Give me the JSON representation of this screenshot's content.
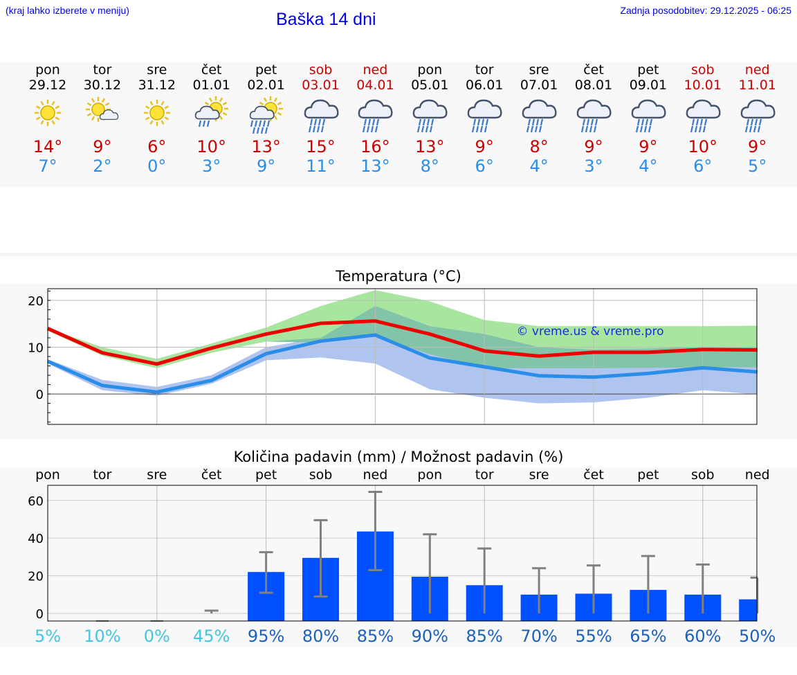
{
  "header": {
    "hint": "(kraj lahko izberete v meniju)",
    "title": "Baška 14 dni",
    "updated": "Zadnja posodobitev: 29.12.2025 - 06:25"
  },
  "days": [
    {
      "name": "pon",
      "date": "29.12",
      "weekend": false,
      "icon": "sun-icon",
      "max": "14°",
      "min": "7°"
    },
    {
      "name": "tor",
      "date": "30.12",
      "weekend": false,
      "icon": "sun-cloud-icon",
      "max": "9°",
      "min": "2°"
    },
    {
      "name": "sre",
      "date": "31.12",
      "weekend": false,
      "icon": "sun-icon",
      "max": "6°",
      "min": "0°"
    },
    {
      "name": "čet",
      "date": "01.01",
      "weekend": false,
      "icon": "sun-cloud-rain-icon",
      "max": "10°",
      "min": "3°"
    },
    {
      "name": "pet",
      "date": "02.01",
      "weekend": false,
      "icon": "sun-cloud-heavy-rain-icon",
      "max": "13°",
      "min": "9°"
    },
    {
      "name": "sob",
      "date": "03.01",
      "weekend": true,
      "icon": "rain-cloud-icon",
      "max": "15°",
      "min": "11°"
    },
    {
      "name": "ned",
      "date": "04.01",
      "weekend": true,
      "icon": "rain-cloud-icon",
      "max": "16°",
      "min": "13°"
    },
    {
      "name": "pon",
      "date": "05.01",
      "weekend": false,
      "icon": "rain-cloud-icon",
      "max": "13°",
      "min": "8°"
    },
    {
      "name": "tor",
      "date": "06.01",
      "weekend": false,
      "icon": "rain-cloud-icon",
      "max": "9°",
      "min": "6°"
    },
    {
      "name": "sre",
      "date": "07.01",
      "weekend": false,
      "icon": "rain-cloud-icon",
      "max": "8°",
      "min": "4°"
    },
    {
      "name": "čet",
      "date": "08.01",
      "weekend": false,
      "icon": "rain-cloud-icon",
      "max": "9°",
      "min": "3°"
    },
    {
      "name": "pet",
      "date": "09.01",
      "weekend": false,
      "icon": "rain-cloud-icon",
      "max": "9°",
      "min": "4°"
    },
    {
      "name": "sob",
      "date": "10.01",
      "weekend": true,
      "icon": "rain-cloud-icon",
      "max": "10°",
      "min": "6°"
    },
    {
      "name": "ned",
      "date": "11.01",
      "weekend": true,
      "icon": "rain-cloud-icon",
      "max": "9°",
      "min": "5°"
    }
  ],
  "colors": {
    "weekend": "#cc0000",
    "weekday": "#000000",
    "tmax": "#ee0000",
    "tmin": "#2a8ee8",
    "bandMax": "#a8e6a0",
    "bandMin": "#b0c4f0",
    "bandOverlap": "#82c4a8",
    "bar": "#0050ff",
    "err": "#808080",
    "probLow": "#40c8e0",
    "probHigh": "#1a60c0"
  },
  "chart_data": [
    {
      "type": "line",
      "title": "Temperatura (°C)",
      "watermark": "© vreme.us & vreme.pro",
      "yticks": [
        0,
        10,
        20
      ],
      "ylim": [
        -6.5,
        22.5
      ],
      "x": [
        0,
        1,
        2,
        3,
        4,
        5,
        6,
        7,
        8,
        9,
        10,
        11,
        12,
        13
      ],
      "series": [
        {
          "name": "max",
          "values": [
            14,
            8.8,
            6.4,
            9.8,
            12.8,
            15.1,
            15.6,
            12.8,
            9.2,
            8.1,
            8.9,
            8.9,
            9.5,
            9.4
          ]
        },
        {
          "name": "min",
          "values": [
            7,
            1.8,
            0.4,
            2.9,
            8.6,
            11.3,
            12.6,
            7.7,
            5.8,
            3.9,
            3.6,
            4.4,
            5.6,
            4.7
          ]
        }
      ],
      "band_max": {
        "upper": [
          14,
          10,
          7.5,
          10.8,
          14.2,
          18.8,
          22.2,
          19.8,
          15.8,
          14.5,
          14.5,
          14.5,
          14.5,
          14.6
        ],
        "lower": [
          13.5,
          8.2,
          5.5,
          8.8,
          11.2,
          11,
          12.4,
          8.5,
          5.5,
          5.5,
          5.5,
          5.6,
          5.7,
          5.7
        ]
      },
      "band_min": {
        "upper": [
          7.4,
          3,
          1.5,
          4,
          10,
          12,
          18.8,
          14.5,
          12.8,
          10,
          9.5,
          9.7,
          10.1,
          10
        ],
        "lower": [
          6.5,
          0.8,
          -0.4,
          2.2,
          7.2,
          7.8,
          6.5,
          1,
          -0.8,
          -2,
          -1.8,
          -0.8,
          0.8,
          -0.1
        ]
      }
    },
    {
      "type": "bar",
      "title": "Količina padavin (mm) / Možnost padavin (%)",
      "yticks": [
        0,
        20,
        40,
        60
      ],
      "ylim": [
        -4,
        68
      ],
      "categories": [
        "pon",
        "tor",
        "sre",
        "čet",
        "pet",
        "sob",
        "ned",
        "pon",
        "tor",
        "sre",
        "čet",
        "pet",
        "sob",
        "ned"
      ],
      "values": [
        0,
        0,
        0,
        0,
        22,
        29.5,
        43.5,
        19.5,
        15,
        10,
        10.5,
        12.5,
        10,
        7.5
      ],
      "err_low": [
        0,
        0,
        0,
        0,
        11,
        9,
        23,
        0,
        0,
        0,
        0,
        0,
        0,
        0
      ],
      "err_high": [
        0,
        0,
        0,
        1.5,
        32.5,
        49.5,
        64.5,
        42,
        34.5,
        24,
        25.5,
        30.5,
        26,
        19
      ],
      "probability": [
        "5%",
        "10%",
        "0%",
        "45%",
        "95%",
        "80%",
        "85%",
        "90%",
        "85%",
        "70%",
        "55%",
        "65%",
        "60%",
        "50%"
      ],
      "probability_values": [
        5,
        10,
        0,
        45,
        95,
        80,
        85,
        90,
        85,
        70,
        55,
        65,
        60,
        50
      ]
    }
  ]
}
